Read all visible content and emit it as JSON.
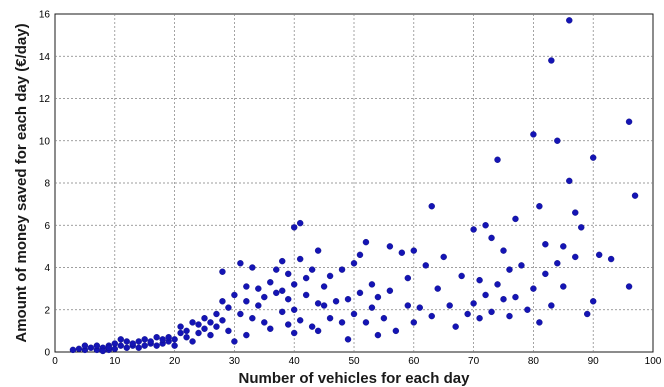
{
  "chart_data": {
    "type": "scatter",
    "xlabel": "Number of vehicles for each day",
    "ylabel": "Amount of money saved for each day (€/day)",
    "xlim": [
      0,
      100
    ],
    "ylim": [
      0,
      16
    ],
    "xticks": [
      0,
      10,
      20,
      30,
      40,
      50,
      60,
      70,
      80,
      90,
      100
    ],
    "yticks": [
      0,
      2,
      4,
      6,
      8,
      10,
      12,
      14,
      16
    ],
    "grid": true,
    "marker_color": "#1414b4",
    "series": [
      {
        "x": [
          3,
          4,
          5,
          5,
          6,
          7,
          7,
          8,
          8,
          9,
          9,
          9,
          10,
          10,
          11,
          11,
          12,
          12,
          13,
          13,
          14,
          14,
          15,
          15,
          16,
          16,
          17,
          17,
          18,
          18,
          19,
          19,
          20,
          20,
          21,
          21,
          22,
          22,
          23,
          23,
          24,
          24,
          25,
          25,
          26,
          26,
          27,
          27,
          28,
          28,
          28,
          29,
          29,
          30,
          30,
          31,
          31,
          32,
          32,
          32,
          33,
          33,
          34,
          34,
          35,
          35,
          36,
          36,
          37,
          37,
          38,
          38,
          38,
          39,
          39,
          39,
          40,
          40,
          40,
          40,
          41,
          41,
          41,
          42,
          42,
          43,
          43,
          44,
          44,
          44,
          45,
          45,
          46,
          46,
          47,
          48,
          48,
          49,
          49,
          50,
          50,
          51,
          51,
          52,
          52,
          53,
          53,
          54,
          54,
          55,
          56,
          56,
          57,
          58,
          59,
          59,
          60,
          60,
          61,
          62,
          63,
          63,
          64,
          65,
          66,
          67,
          68,
          69,
          70,
          70,
          71,
          71,
          72,
          72,
          73,
          73,
          74,
          74,
          75,
          75,
          76,
          76,
          77,
          77,
          78,
          79,
          80,
          80,
          81,
          81,
          82,
          82,
          83,
          83,
          84,
          84,
          85,
          85,
          86,
          86,
          87,
          87,
          88,
          89,
          90,
          90,
          91,
          93,
          96,
          96,
          97
        ],
        "y": [
          0.1,
          0.15,
          0.1,
          0.3,
          0.2,
          0.1,
          0.3,
          0.2,
          0.05,
          0.3,
          0.1,
          0.2,
          0.15,
          0.4,
          0.3,
          0.6,
          0.2,
          0.5,
          0.3,
          0.4,
          0.2,
          0.5,
          0.3,
          0.6,
          0.4,
          0.5,
          0.3,
          0.7,
          0.4,
          0.6,
          0.5,
          0.7,
          0.3,
          0.6,
          0.9,
          1.2,
          0.7,
          1.0,
          0.5,
          1.4,
          0.9,
          1.3,
          1.1,
          1.6,
          0.8,
          1.4,
          1.2,
          1.8,
          1.5,
          3.8,
          2.4,
          1.0,
          2.1,
          2.7,
          0.5,
          4.2,
          1.8,
          2.4,
          0.8,
          3.1,
          1.6,
          4.0,
          2.2,
          3.0,
          1.4,
          2.6,
          3.3,
          1.1,
          2.8,
          3.9,
          1.9,
          2.9,
          4.3,
          1.3,
          2.5,
          3.7,
          0.9,
          2.0,
          3.2,
          5.9,
          1.5,
          4.4,
          6.1,
          2.7,
          3.5,
          1.2,
          3.9,
          2.3,
          4.8,
          1.0,
          3.1,
          2.2,
          1.6,
          3.6,
          2.4,
          1.4,
          3.9,
          0.6,
          2.5,
          1.8,
          4.2,
          2.8,
          4.6,
          1.4,
          5.2,
          2.1,
          3.2,
          0.8,
          2.6,
          1.6,
          5.0,
          2.9,
          1.0,
          4.7,
          2.2,
          3.5,
          1.4,
          4.8,
          2.1,
          4.1,
          6.9,
          1.7,
          3.0,
          4.5,
          2.2,
          1.2,
          3.6,
          1.8,
          5.8,
          2.3,
          1.6,
          3.4,
          6.0,
          2.7,
          1.9,
          5.4,
          9.1,
          3.2,
          2.5,
          4.8,
          1.7,
          3.9,
          6.3,
          2.6,
          4.1,
          2.0,
          10.3,
          3.0,
          6.9,
          1.4,
          5.1,
          3.7,
          13.8,
          2.2,
          10.0,
          4.2,
          3.1,
          5.0,
          15.7,
          8.1,
          6.6,
          4.5,
          5.9,
          1.8,
          9.2,
          2.4,
          4.6,
          4.4,
          10.9,
          3.1,
          7.4
        ]
      }
    ]
  }
}
